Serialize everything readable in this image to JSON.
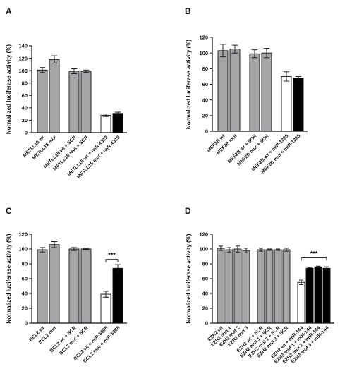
{
  "figure": {
    "panels": [
      {
        "letter": "A"
      },
      {
        "letter": "B"
      },
      {
        "letter": "C"
      },
      {
        "letter": "D"
      }
    ]
  },
  "colors": {
    "gray": "#a6a6a8",
    "white": "#ffffff",
    "black": "#000000",
    "axis": "#111111"
  },
  "chart_data": [
    {
      "panel": "A",
      "type": "bar",
      "ylabel": "Normalized luciferase activity (%)",
      "ylim": [
        0,
        140
      ],
      "yticks": [
        0,
        20,
        40,
        60,
        80,
        100,
        120,
        140
      ],
      "categories": [
        "METLL15 wt",
        "METLL15 mut",
        "METLL15 wt + SCR",
        "METLL15 mut + SCR",
        "METLL15 wt + miR-4313",
        "METLL15 mut + miR-4313"
      ],
      "values": [
        101,
        118,
        99,
        99,
        28,
        31
      ],
      "errors": [
        4,
        6,
        4,
        2,
        2,
        2
      ],
      "groups": [
        0,
        0,
        1,
        1,
        2,
        2
      ],
      "colors": [
        "gray",
        "gray",
        "gray",
        "gray",
        "white",
        "black"
      ],
      "significance": null
    },
    {
      "panel": "B",
      "type": "bar",
      "ylabel": "Normalized luciferase activity (%)",
      "ylim": [
        0,
        120
      ],
      "yticks": [
        0,
        20,
        40,
        60,
        80,
        100,
        120
      ],
      "categories": [
        "MEF2B wt",
        "MEF2B mut",
        "MEF2B wt + SCR",
        "MEF2B mut + SCR",
        "MEF2B wt + miR-1285",
        "MEF2B mut + miR-1285"
      ],
      "values": [
        103,
        105,
        99,
        100,
        70,
        68
      ],
      "errors": [
        8,
        5,
        5,
        6,
        6,
        2
      ],
      "groups": [
        0,
        0,
        1,
        1,
        2,
        2
      ],
      "colors": [
        "gray",
        "gray",
        "gray",
        "gray",
        "white",
        "black"
      ],
      "significance": null
    },
    {
      "panel": "C",
      "type": "bar",
      "ylabel": "Normalized luciferase activity (%)",
      "ylim": [
        0,
        120
      ],
      "yticks": [
        0,
        20,
        40,
        60,
        80,
        100,
        120
      ],
      "categories": [
        "BCL2 wt",
        "BCL2 mut",
        "BCL2 wt + SCR",
        "BCL2 mut + SCR",
        "BCL2 wt + miR-5008",
        "BCL2 mut + miR-5008"
      ],
      "values": [
        99,
        106,
        100,
        100,
        39,
        74
      ],
      "errors": [
        3,
        4,
        2,
        1,
        4,
        5
      ],
      "groups": [
        0,
        0,
        1,
        1,
        2,
        2
      ],
      "colors": [
        "gray",
        "gray",
        "gray",
        "gray",
        "white",
        "black"
      ],
      "significance": {
        "label": "***",
        "from": 4,
        "to": 5,
        "y": 86
      }
    },
    {
      "panel": "D",
      "type": "bar",
      "ylabel": "Normalized luciferase activity (%)",
      "ylim": [
        0,
        120
      ],
      "yticks": [
        0,
        20,
        40,
        60,
        80,
        100,
        120
      ],
      "categories": [
        "EZH2 wt",
        "EZH2 mut 1",
        "EZH2 mut 2",
        "EZH2 mut 3",
        "EZH2 wt + SCR",
        "EZH2 mut 1 + SCR",
        "EZH2 mut 2 + SCR",
        "EZH2 mut 3 + SCR",
        "EZH2 wt + miR-144",
        "EZH2 mut 1 + miR-144",
        "EZH2 mut 2 + miR-144",
        "EZH2 mut 3 + miR-144"
      ],
      "values": [
        101,
        99,
        100,
        98,
        99,
        99,
        99,
        99,
        55,
        74,
        76,
        74
      ],
      "errors": [
        3,
        3,
        4,
        3,
        2,
        1,
        1,
        2,
        3,
        1,
        1,
        2
      ],
      "groups": [
        0,
        0,
        0,
        0,
        1,
        1,
        1,
        1,
        2,
        2,
        2,
        2
      ],
      "colors": [
        "gray",
        "gray",
        "gray",
        "gray",
        "gray",
        "gray",
        "gray",
        "gray",
        "white",
        "black",
        "black",
        "black"
      ],
      "significance": {
        "label": "***",
        "from": 8,
        "to": 11,
        "y": 88
      }
    }
  ]
}
